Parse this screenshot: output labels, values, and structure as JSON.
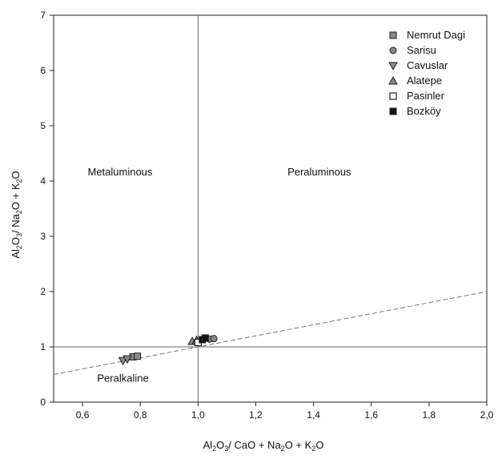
{
  "chart_data": {
    "type": "scatter",
    "xlim": [
      0.5,
      2.0
    ],
    "ylim": [
      0,
      7
    ],
    "xticks": [
      "0,6",
      "0,8",
      "1,0",
      "1,2",
      "1,4",
      "1,6",
      "1,8",
      "2,0"
    ],
    "xtick_values": [
      0.6,
      0.8,
      1.0,
      1.2,
      1.4,
      1.6,
      1.8,
      2.0
    ],
    "yticks": [
      "0",
      "1",
      "2",
      "3",
      "4",
      "5",
      "6",
      "7"
    ],
    "ytick_values": [
      0,
      1,
      2,
      3,
      4,
      5,
      6,
      7
    ],
    "xlabel": "Al2O3/ CaO + Na2O + K2O",
    "ylabel": "Al2O3/ Na2O + K2O",
    "grid": false,
    "legend_position": "top-right",
    "regions": [
      {
        "label": "Metaluminous",
        "x": 0.73,
        "y": 4.1
      },
      {
        "label": "Peraluminous",
        "x": 1.42,
        "y": 4.1
      },
      {
        "label": "Peralkaline",
        "x": 0.74,
        "y": 0.37
      }
    ],
    "reference_lines": [
      {
        "type": "vertical",
        "x": 1.0,
        "style": "solid"
      },
      {
        "type": "horizontal",
        "y": 1.0,
        "style": "solid"
      },
      {
        "type": "diagonal",
        "from": [
          0.5,
          0.5
        ],
        "to": [
          2.0,
          2.0
        ],
        "style": "dashed"
      }
    ],
    "series": [
      {
        "name": "Nemrut Dagi",
        "marker": "square-gray",
        "x": [
          0.775,
          0.79
        ],
        "y": [
          0.82,
          0.83
        ]
      },
      {
        "name": "Sarisu",
        "marker": "circle-gray",
        "x": [
          1.04,
          1.055
        ],
        "y": [
          1.14,
          1.15
        ]
      },
      {
        "name": "Cavuslar",
        "marker": "triangle-down-gray",
        "x": [
          0.74,
          0.755
        ],
        "y": [
          0.75,
          0.78
        ]
      },
      {
        "name": "Alatepe",
        "marker": "triangle-up-gray",
        "x": [
          0.98,
          0.995
        ],
        "y": [
          1.1,
          1.12
        ]
      },
      {
        "name": "Pasinler",
        "marker": "square-white",
        "x": [
          1.0
        ],
        "y": [
          1.08
        ]
      },
      {
        "name": "Bozköy",
        "marker": "square-black",
        "x": [
          1.015,
          1.025
        ],
        "y": [
          1.13,
          1.16
        ]
      }
    ]
  }
}
